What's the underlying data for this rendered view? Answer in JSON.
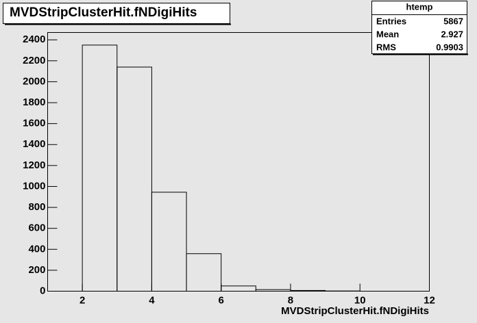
{
  "chart_data": {
    "type": "histogram",
    "title": "MVDStripClusterHit.fNDigiHits",
    "x_label": "MVDStripClusterHit.fNDigiHits",
    "bins": [
      1,
      2,
      3,
      4,
      5,
      6,
      7,
      8,
      9,
      10,
      11,
      12
    ],
    "counts": [
      0,
      2350,
      2140,
      945,
      358,
      50,
      15,
      7,
      2,
      0,
      0
    ],
    "color": "#000000",
    "xlim": [
      1,
      12
    ],
    "xticks": [
      2,
      4,
      6,
      8,
      10,
      12
    ],
    "ylim": [
      0,
      2470
    ],
    "yticks": [
      0,
      200,
      400,
      600,
      800,
      1000,
      1200,
      1400,
      1600,
      1800,
      2000,
      2200,
      2400
    ],
    "stats": {
      "title": "htemp",
      "rows": [
        [
          "Entries",
          5867
        ],
        [
          "Mean",
          2.927
        ],
        [
          "RMS",
          0.9903
        ]
      ]
    }
  }
}
